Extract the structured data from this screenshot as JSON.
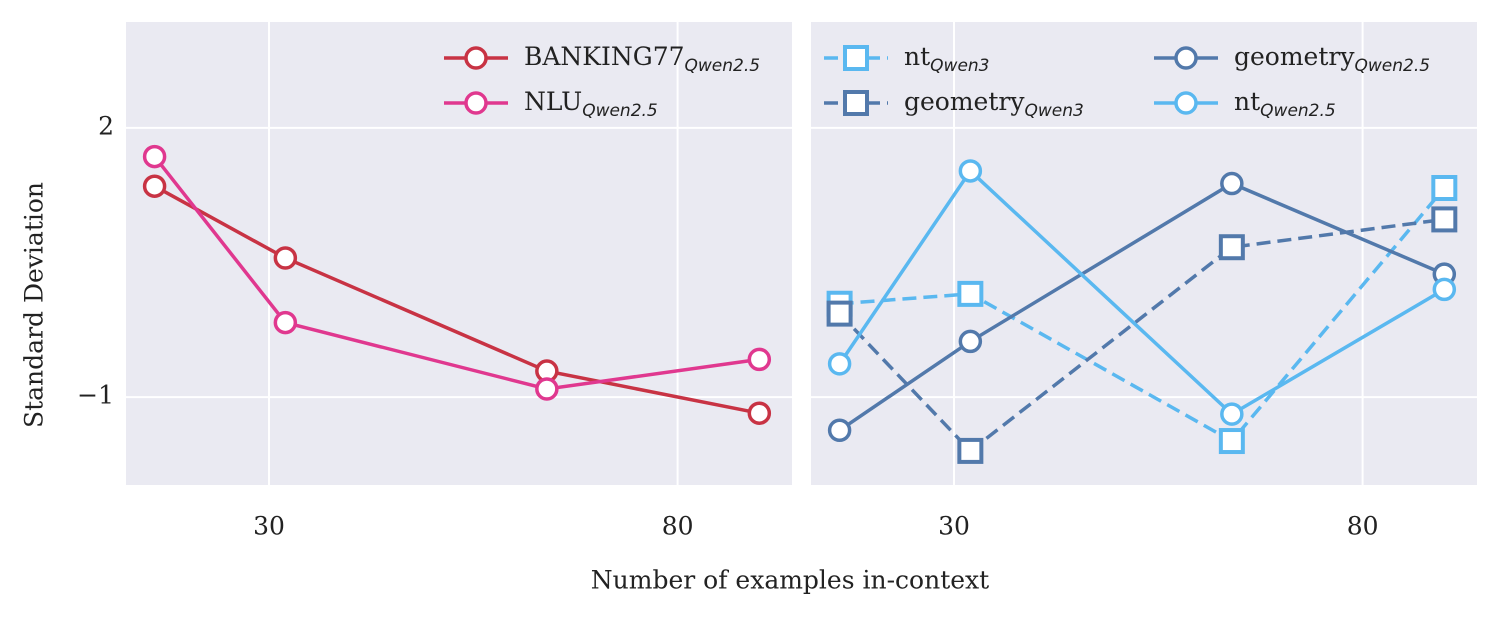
{
  "chart_data": [
    {
      "type": "line",
      "ylabel": "Standard Deviation",
      "xlabel": "Number of examples in-context",
      "x": [
        16,
        32,
        64,
        90
      ],
      "xlim": [
        12.5,
        94
      ],
      "ylim": [
        -1.98,
        3.18
      ],
      "xticks": [
        30,
        80
      ],
      "yticks": [
        2,
        {
          "value": -1,
          "label": "−1"
        }
      ],
      "grid": true,
      "legend": "upper right",
      "legend_columns": 1,
      "series": [
        {
          "name": "BANKING77",
          "name_sub": "Qwen2.5",
          "color": "#c83344",
          "marker": "o",
          "dashed": false,
          "values": [
            1.35,
            0.55,
            -0.71,
            -1.18
          ]
        },
        {
          "name": "NLU",
          "name_sub": "Qwen2.5",
          "color": "#e0388f",
          "marker": "o",
          "dashed": false,
          "values": [
            1.68,
            -0.17,
            -0.91,
            -0.58
          ]
        }
      ]
    },
    {
      "type": "line",
      "x": [
        16,
        32,
        64,
        90
      ],
      "xlim": [
        12.5,
        94
      ],
      "ylim": [
        -1.98,
        3.18
      ],
      "xticks": [
        30,
        80
      ],
      "yticks": [
        2,
        -1
      ],
      "grid": true,
      "legend": "upper center",
      "legend_columns": 2,
      "series": [
        {
          "name": "nt",
          "name_sub": "Qwen3",
          "color": "#5ab8f0",
          "marker": "s",
          "dashed": true,
          "values": [
            0.04,
            0.15,
            -1.49,
            1.33
          ]
        },
        {
          "name": "geometry",
          "name_sub": "Qwen3",
          "color": "#5279ab",
          "marker": "s",
          "dashed": true,
          "values": [
            -0.07,
            -1.6,
            0.67,
            0.98
          ]
        },
        {
          "name": "geometry",
          "name_sub": "Qwen2.5",
          "color": "#5279ab",
          "marker": "o",
          "dashed": false,
          "values": [
            -1.37,
            -0.38,
            1.38,
            0.37
          ]
        },
        {
          "name": "nt",
          "name_sub": "Qwen2.5",
          "color": "#5ab8f0",
          "marker": "o",
          "dashed": false,
          "values": [
            -0.63,
            1.52,
            -1.19,
            0.2
          ]
        }
      ]
    }
  ]
}
